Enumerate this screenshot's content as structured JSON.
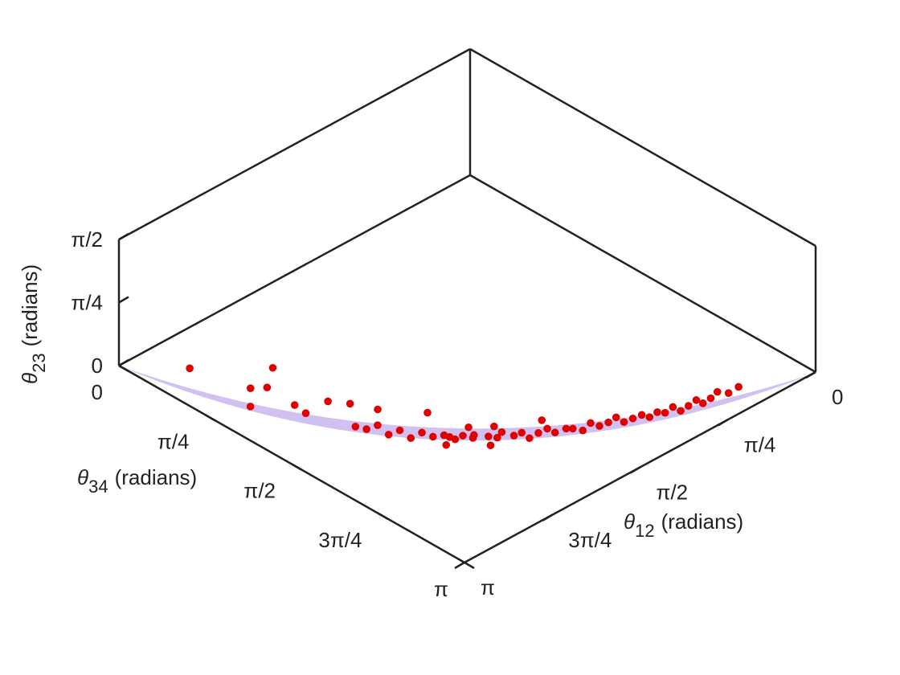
{
  "chart_data": {
    "type": "scatter3d",
    "xlabel": {
      "symbol": "θ",
      "subscript": "12",
      "text": "(radians)"
    },
    "ylabel": {
      "symbol": "θ",
      "subscript": "34",
      "text": "(radians)"
    },
    "zlabel": {
      "symbol": "θ",
      "subscript": "23",
      "text": "(radians)"
    },
    "xlim": [
      0,
      3.1416
    ],
    "ylim": [
      0,
      3.1416
    ],
    "zlim": [
      0,
      1.5708
    ],
    "xticks": [
      0,
      {
        "value": 0.7854,
        "label": "π/4"
      },
      {
        "value": 1.5708,
        "label": "π/2"
      },
      {
        "value": 2.3562,
        "label": "3π/4"
      },
      {
        "value": 3.1416,
        "label": "π"
      }
    ],
    "yticks": [
      0,
      {
        "value": 0.7854,
        "label": "π/4"
      },
      {
        "value": 1.5708,
        "label": "π/2"
      },
      {
        "value": 2.3562,
        "label": "3π/4"
      },
      {
        "value": 3.1416,
        "label": "π"
      }
    ],
    "zticks": [
      0,
      {
        "value": 0.7854,
        "label": "π/4"
      },
      {
        "value": 1.5708,
        "label": "π/2"
      }
    ],
    "color": "#e00000",
    "x": [
      3.0,
      2.9,
      2.85,
      2.8,
      2.7,
      2.75,
      2.7,
      2.6,
      2.55,
      2.45,
      2.3,
      2.6,
      2.55,
      2.5,
      2.48,
      2.42,
      2.4,
      2.35,
      2.3,
      2.25,
      2.2,
      2.18,
      2.12,
      2.1,
      2.05,
      2.0,
      1.98,
      1.92,
      1.88,
      1.85,
      1.8,
      1.75,
      1.7,
      1.65,
      1.6,
      1.55,
      1.5,
      1.45,
      1.4,
      1.35,
      1.3,
      1.25,
      1.2,
      1.15,
      1.1,
      1.05,
      1.0,
      0.95,
      0.9,
      0.85,
      0.8,
      0.75,
      0.7,
      0.62,
      0.55,
      2.2,
      2.15,
      1.95,
      2.28,
      2.08,
      1.72
    ],
    "y": [
      0.5,
      0.95,
      0.9,
      1.0,
      0.95,
      1.2,
      1.25,
      1.35,
      1.5,
      1.65,
      1.95,
      1.6,
      1.65,
      1.7,
      1.78,
      1.82,
      1.9,
      1.95,
      2.0,
      2.05,
      2.1,
      2.15,
      2.18,
      2.12,
      2.25,
      2.28,
      2.3,
      2.35,
      2.38,
      2.42,
      2.45,
      2.48,
      2.5,
      2.55,
      2.56,
      2.6,
      2.62,
      2.65,
      2.68,
      2.7,
      2.72,
      2.75,
      2.78,
      2.8,
      2.82,
      2.84,
      2.86,
      2.88,
      2.9,
      2.92,
      2.93,
      2.95,
      2.96,
      2.98,
      3.0,
      2.05,
      2.22,
      2.2,
      2.1,
      2.3,
      2.4
    ],
    "z": [
      0.25,
      0.05,
      0.2,
      0.25,
      0.38,
      0.15,
      0.05,
      0.2,
      0.25,
      0.22,
      0.3,
      0.08,
      0.05,
      0.1,
      0.03,
      0.07,
      0.02,
      0.09,
      0.04,
      0.06,
      0.01,
      0.08,
      0.03,
      0.1,
      0.05,
      0.02,
      0.09,
      0.04,
      0.07,
      0.01,
      0.06,
      0.1,
      0.03,
      0.08,
      0.05,
      0.02,
      0.09,
      0.04,
      0.07,
      0.11,
      0.03,
      0.06,
      0.09,
      0.04,
      0.08,
      0.05,
      0.1,
      0.03,
      0.07,
      0.12,
      0.05,
      0.09,
      0.14,
      0.08,
      0.12,
      0.0,
      0.12,
      0.06,
      0.0,
      0.0,
      0.12
    ]
  }
}
